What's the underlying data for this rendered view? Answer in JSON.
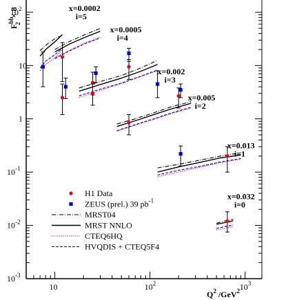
{
  "chart_data": {
    "type": "scatter",
    "xlabel_main": "Q",
    "xlabel_sup": "2",
    "xlabel_rest": " /GeV",
    "xlabel_sup2": "2",
    "ylabel_main": "F",
    "ylabel_sup": "bb",
    "ylabel_sub": "2",
    "ylabel_rest": "× 8",
    "x_scale": "log",
    "y_scale": "log",
    "xlim": [
      5,
      1500
    ],
    "ylim": [
      0.001,
      170
    ],
    "x_ticks": [
      {
        "value": 10,
        "base": "10",
        "exp": ""
      },
      {
        "value": 100,
        "base": "10",
        "exp": "2"
      },
      {
        "value": 1000,
        "base": "10",
        "exp": "3"
      }
    ],
    "y_ticks": [
      {
        "value": 0.001,
        "base": "10",
        "exp": "-3"
      },
      {
        "value": 0.01,
        "base": "10",
        "exp": "-2"
      },
      {
        "value": 0.1,
        "base": "10",
        "exp": "-1"
      },
      {
        "value": 1,
        "base": "1",
        "exp": ""
      },
      {
        "value": 10,
        "base": "10",
        "exp": ""
      },
      {
        "value": 100,
        "base": "10",
        "exp": "2"
      }
    ],
    "bin_annotations": [
      {
        "x_label": "x=0.0002",
        "i_label": "i=5",
        "anchor": [
          14,
          105
        ]
      },
      {
        "x_label": "x=0.0005",
        "i_label": "i=4",
        "anchor": [
          38,
          42
        ]
      },
      {
        "x_label": "x=0.002",
        "i_label": "i=3",
        "anchor": [
          120,
          6.8
        ]
      },
      {
        "x_label": "x=0.005",
        "i_label": "i=2",
        "anchor": [
          250,
          2.2
        ]
      },
      {
        "x_label": "x=0.013",
        "i_label": "i=1",
        "anchor": [
          650,
          0.28
        ]
      },
      {
        "x_label": "x=0.032",
        "i_label": "i=0",
        "anchor": [
          650,
          0.031
        ]
      }
    ],
    "series": [
      {
        "name": "H1 Data",
        "marker": "circle",
        "color": "#e8001c",
        "points": [
          {
            "x": 12,
            "y": 14.5,
            "lo": 5.0,
            "hi": 27
          },
          {
            "x": 12,
            "y": 2.5,
            "lo": 1.2,
            "hi": 4.5
          },
          {
            "x": 25,
            "y": 4.8,
            "lo": 2.8,
            "hi": 7.5
          },
          {
            "x": 25,
            "y": 3.0,
            "lo": 1.8,
            "hi": 4.5
          },
          {
            "x": 60,
            "y": 9.5,
            "lo": 5.5,
            "hi": 13
          },
          {
            "x": 60,
            "y": 0.85,
            "lo": 0.5,
            "hi": 1.2
          },
          {
            "x": 200,
            "y": 2.7,
            "lo": 1.6,
            "hi": 3.8
          },
          {
            "x": 650,
            "y": 0.2,
            "lo": 0.1,
            "hi": 0.3
          },
          {
            "x": 650,
            "y": 0.012,
            "lo": 0.0075,
            "hi": 0.018
          }
        ]
      },
      {
        "name": "ZEUS (prel.) 39 pb",
        "name_sup": "-1",
        "marker": "square",
        "color": "#0000e8",
        "points": [
          {
            "x": 7.5,
            "y": 9.5,
            "lo": 4.0,
            "hi": 18
          },
          {
            "x": 13,
            "y": 4.0,
            "lo": 2.4,
            "hi": 5.8
          },
          {
            "x": 27,
            "y": 7.2,
            "lo": 4.8,
            "hi": 9.5
          },
          {
            "x": 60,
            "y": 17,
            "lo": 12,
            "hi": 21
          },
          {
            "x": 120,
            "y": 4.5,
            "lo": 2.5,
            "hi": 8.0
          },
          {
            "x": 210,
            "y": 3.5,
            "lo": 2.5,
            "hi": 4.5
          },
          {
            "x": 210,
            "y": 0.22,
            "lo": 0.13,
            "hi": 0.31
          }
        ]
      }
    ],
    "curves": [
      {
        "name": "MRST04",
        "style": "dashdot",
        "color": "#000000",
        "segments": [
          [
            [
              7,
              19
            ],
            [
              8,
              24
            ],
            [
              10,
              32
            ],
            [
              12,
              37
            ]
          ],
          [
            [
              10,
              20
            ],
            [
              14,
              28
            ],
            [
              20,
              37
            ],
            [
              30,
              50
            ]
          ],
          [
            [
              18,
              3.8
            ],
            [
              30,
              5.0
            ],
            [
              50,
              6.5
            ],
            [
              80,
              9.0
            ],
            [
              120,
              12.5
            ]
          ],
          [
            [
              45,
              0.8
            ],
            [
              70,
              1.0
            ],
            [
              110,
              1.3
            ],
            [
              170,
              1.7
            ],
            [
              270,
              2.1
            ]
          ],
          [
            [
              120,
              0.12
            ],
            [
              200,
              0.14
            ],
            [
              350,
              0.17
            ],
            [
              550,
              0.2
            ],
            [
              900,
              0.23
            ]
          ],
          [
            [
              500,
              0.011
            ],
            [
              600,
              0.012
            ],
            [
              750,
              0.013
            ]
          ]
        ]
      },
      {
        "name": "MRST NNLO",
        "style": "solid",
        "color": "#000000",
        "segments": [
          [
            [
              7,
              15
            ],
            [
              8,
              20
            ],
            [
              10,
              28
            ],
            [
              12,
              38
            ]
          ],
          [
            [
              10,
              18
            ],
            [
              14,
              25
            ],
            [
              20,
              33
            ],
            [
              30,
              44
            ]
          ],
          [
            [
              18,
              3.3
            ],
            [
              30,
              4.4
            ],
            [
              50,
              5.8
            ],
            [
              80,
              7.8
            ],
            [
              120,
              10.5
            ]
          ],
          [
            [
              45,
              0.72
            ],
            [
              70,
              0.92
            ],
            [
              110,
              1.2
            ],
            [
              170,
              1.55
            ],
            [
              270,
              1.95
            ]
          ],
          [
            [
              120,
              0.1
            ],
            [
              200,
              0.125
            ],
            [
              350,
              0.155
            ],
            [
              550,
              0.185
            ],
            [
              900,
              0.21
            ]
          ],
          [
            [
              500,
              0.0105
            ],
            [
              600,
              0.0112
            ],
            [
              750,
              0.0122
            ]
          ]
        ]
      },
      {
        "name": "CTEQ6HQ",
        "style": "dotted",
        "color": "#e8001c",
        "segments": [
          [
            [
              7,
              8
            ],
            [
              8,
              10.5
            ],
            [
              10,
              14
            ],
            [
              12,
              20
            ]
          ],
          [
            [
              10,
              14
            ],
            [
              14,
              19
            ],
            [
              20,
              26
            ],
            [
              30,
              34
            ]
          ],
          [
            [
              18,
              2.5
            ],
            [
              30,
              3.4
            ],
            [
              50,
              4.6
            ],
            [
              80,
              6.2
            ],
            [
              120,
              8.0
            ]
          ],
          [
            [
              45,
              0.58
            ],
            [
              70,
              0.76
            ],
            [
              110,
              0.98
            ],
            [
              170,
              1.25
            ],
            [
              270,
              1.6
            ]
          ],
          [
            [
              120,
              0.082
            ],
            [
              200,
              0.1
            ],
            [
              350,
              0.125
            ],
            [
              550,
              0.15
            ],
            [
              900,
              0.175
            ]
          ],
          [
            [
              500,
              0.0082
            ],
            [
              600,
              0.0088
            ],
            [
              750,
              0.0095
            ]
          ]
        ]
      },
      {
        "name": "HVQDIS + CTEQ5F4",
        "style": "dashed",
        "color": "#0000e8",
        "segments": [
          [
            [
              7,
              9
            ],
            [
              8,
              12
            ],
            [
              10,
              16
            ],
            [
              12,
              21
            ]
          ],
          [
            [
              10,
              13.5
            ],
            [
              14,
              18.5
            ],
            [
              20,
              25
            ],
            [
              30,
              33
            ]
          ],
          [
            [
              18,
              2.7
            ],
            [
              30,
              3.6
            ],
            [
              50,
              4.7
            ],
            [
              80,
              6.3
            ],
            [
              120,
              8.3
            ]
          ],
          [
            [
              45,
              0.6
            ],
            [
              70,
              0.78
            ],
            [
              110,
              1.0
            ],
            [
              170,
              1.3
            ],
            [
              270,
              1.65
            ]
          ],
          [
            [
              120,
              0.088
            ],
            [
              200,
              0.108
            ],
            [
              350,
              0.13
            ],
            [
              550,
              0.155
            ],
            [
              900,
              0.18
            ]
          ],
          [
            [
              500,
              0.0088
            ],
            [
              600,
              0.0094
            ],
            [
              750,
              0.0102
            ]
          ]
        ]
      }
    ],
    "legend": [
      {
        "label": "H1 Data",
        "sup": "",
        "kind": "marker",
        "marker": "circle",
        "color": "#e8001c"
      },
      {
        "label": "ZEUS (prel.) 39 pb",
        "sup": "-1",
        "kind": "marker",
        "marker": "square",
        "color": "#0000e8"
      },
      {
        "label": "MRST04",
        "sup": "",
        "kind": "line",
        "style": "dashdot",
        "color": "#000000"
      },
      {
        "label": "MRST NNLO",
        "sup": "",
        "kind": "line",
        "style": "solid",
        "color": "#000000"
      },
      {
        "label": "CTEQ6HQ",
        "sup": "",
        "kind": "line",
        "style": "dotted",
        "color": "#e8001c"
      },
      {
        "label": "HVQDIS + CTEQ5F4",
        "sup": "",
        "kind": "line",
        "style": "dashed",
        "color": "#0000e8"
      }
    ]
  }
}
